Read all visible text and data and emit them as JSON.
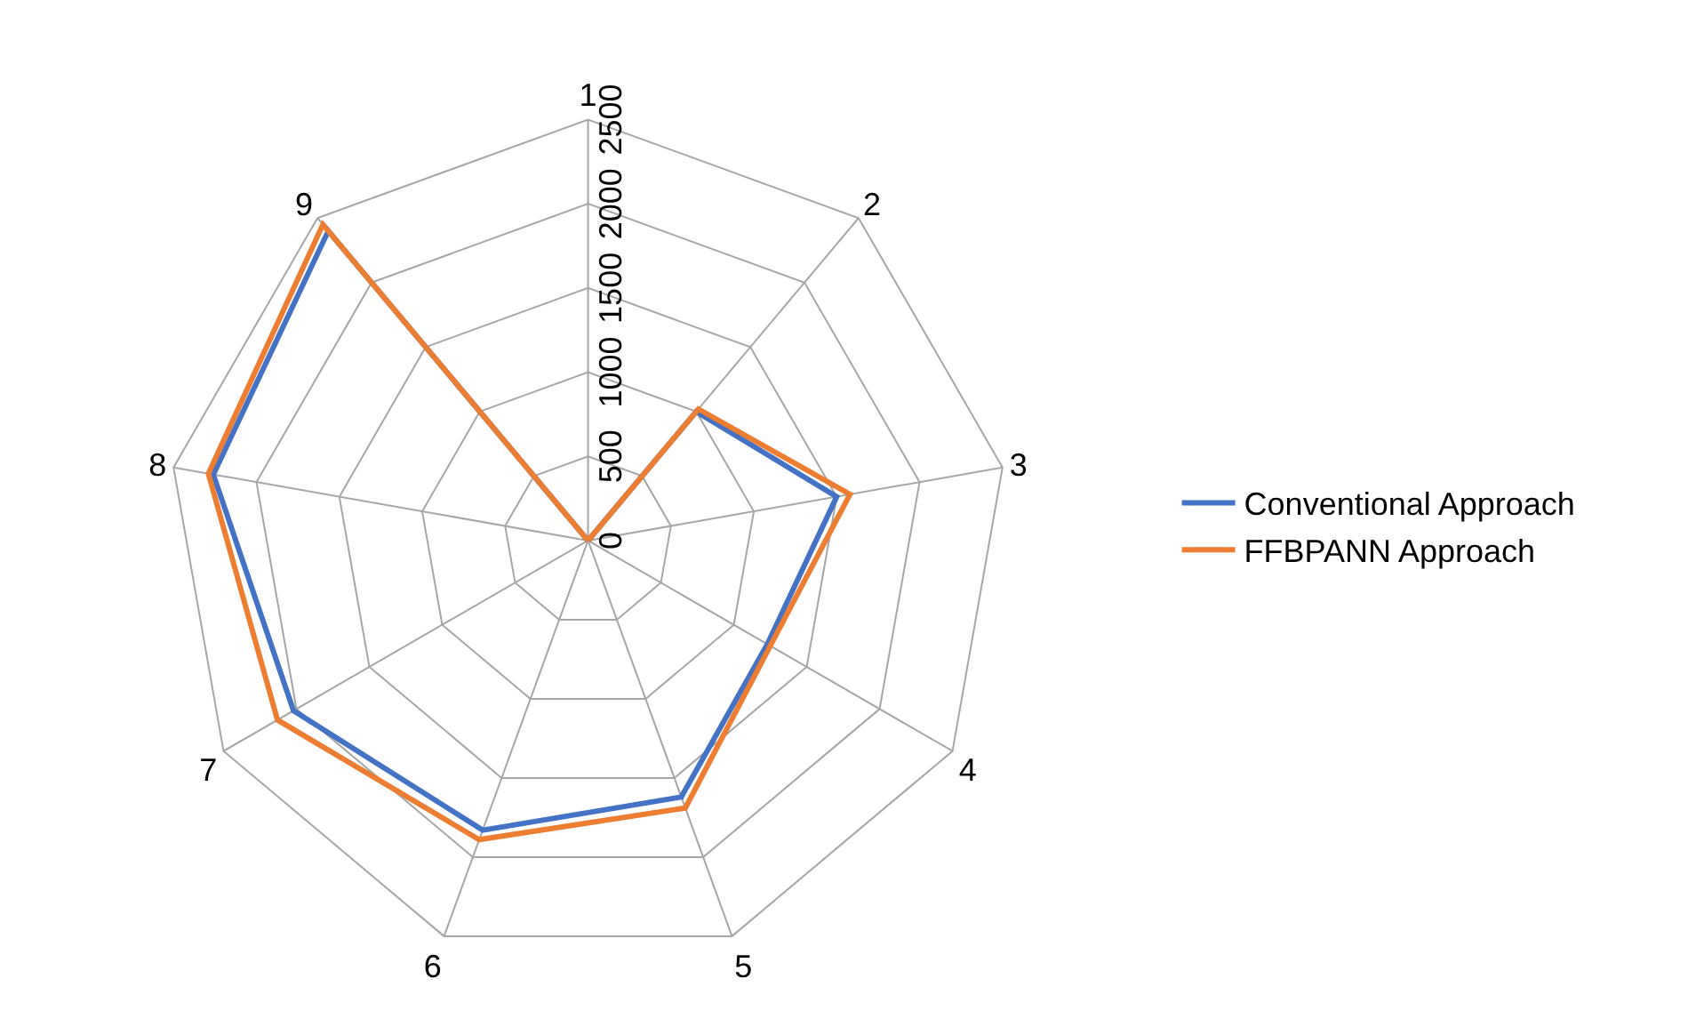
{
  "chart_data": {
    "type": "radar",
    "categories": [
      "1",
      "2",
      "3",
      "4",
      "5",
      "6",
      "7",
      "8",
      "9"
    ],
    "series": [
      {
        "name": "Conventional Approach",
        "color": "#4472c4",
        "values": [
          0,
          1000,
          1500,
          1230,
          1620,
          1830,
          2020,
          2260,
          2400
        ]
      },
      {
        "name": "FFBPANN Approach",
        "color": "#ed7d31",
        "values": [
          0,
          1020,
          1580,
          1250,
          1690,
          1890,
          2130,
          2290,
          2450
        ]
      }
    ],
    "ylim": [
      0,
      2500
    ],
    "yticks": [
      0,
      500,
      1000,
      1500,
      2000,
      2500
    ],
    "grid": true,
    "legend": "right",
    "marker": "none",
    "line_style": "solid"
  }
}
